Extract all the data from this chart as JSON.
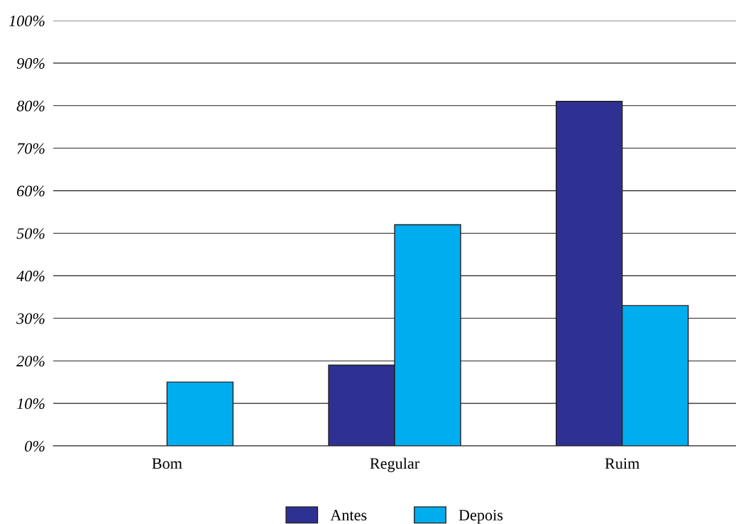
{
  "chart_data": {
    "type": "bar",
    "categories": [
      "Bom",
      "Regular",
      "Ruim"
    ],
    "series": [
      {
        "name": "Antes",
        "color": "#2e3192",
        "values": [
          null,
          19,
          81
        ]
      },
      {
        "name": "Depois",
        "color": "#00aeef",
        "values": [
          15,
          52,
          33
        ]
      }
    ],
    "ylim": [
      0,
      100
    ],
    "yticks": [
      {
        "value": 0,
        "label": "0%"
      },
      {
        "value": 10,
        "label": "10%"
      },
      {
        "value": 20,
        "label": "20%"
      },
      {
        "value": 30,
        "label": "30%"
      },
      {
        "value": 40,
        "label": "40%"
      },
      {
        "value": 50,
        "label": "50%"
      },
      {
        "value": 60,
        "label": "60%"
      },
      {
        "value": 70,
        "label": "70%"
      },
      {
        "value": 80,
        "label": "80%"
      },
      {
        "value": 90,
        "label": "90%"
      },
      {
        "value": 100,
        "label": "100%"
      }
    ],
    "grid": "y",
    "legend": "bottom"
  }
}
